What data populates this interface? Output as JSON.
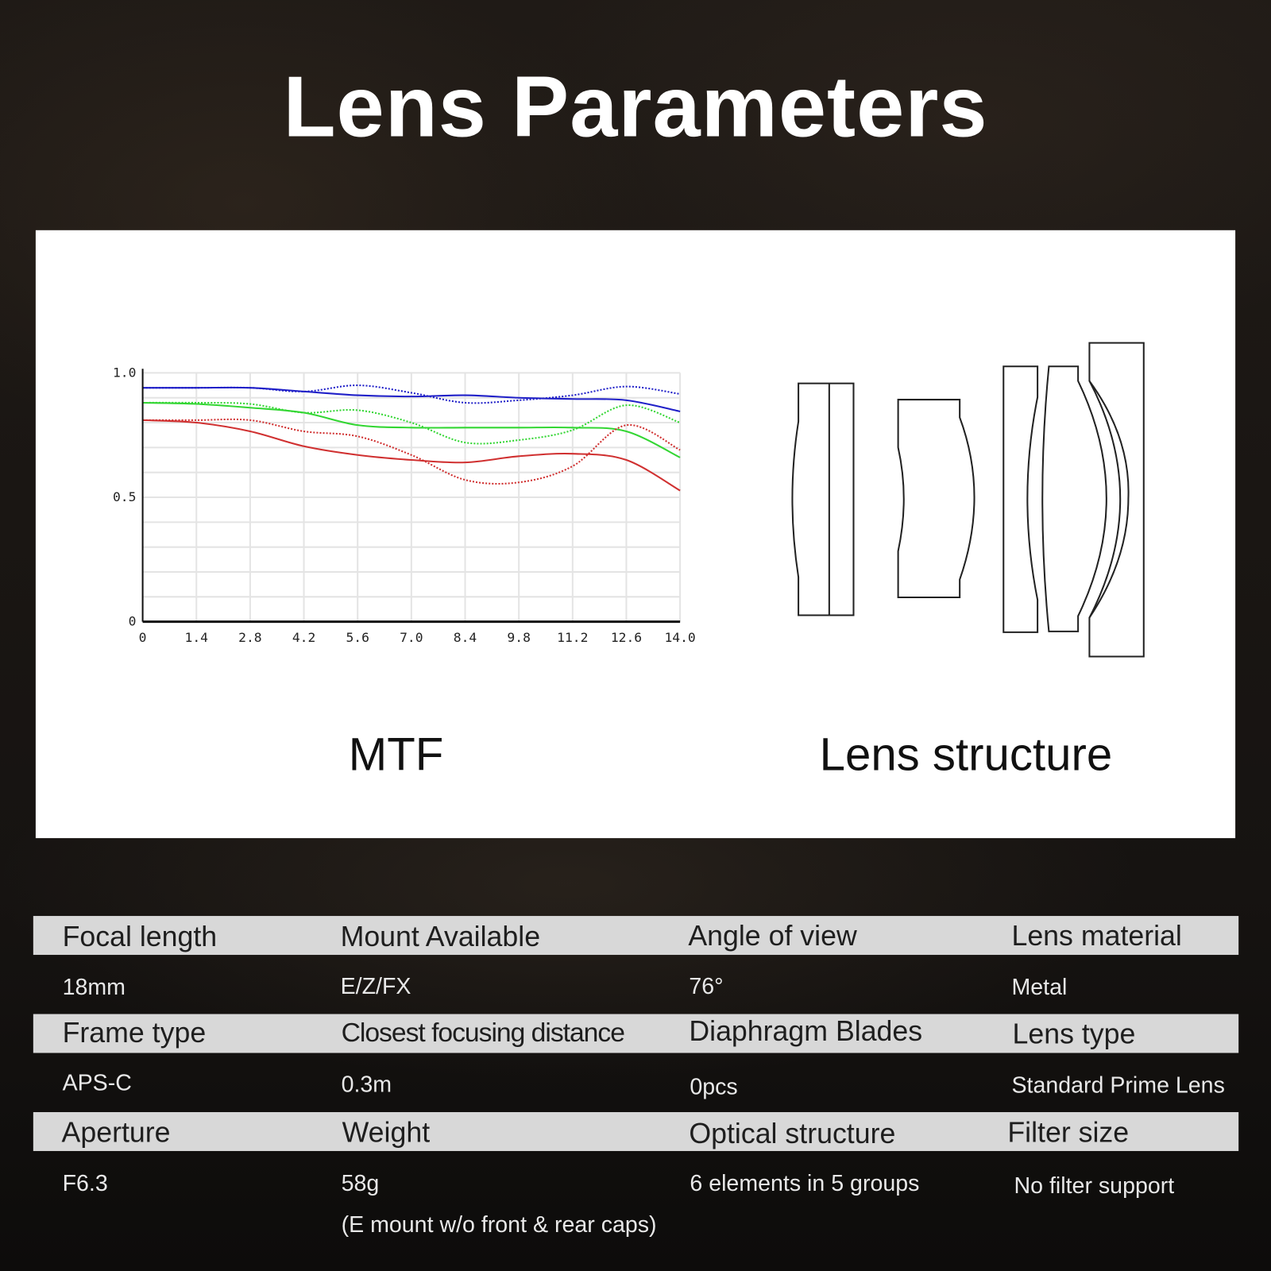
{
  "title": "Lens Parameters",
  "captions": {
    "mtf": "MTF",
    "structure": "Lens structure"
  },
  "specs": [
    {
      "label": "Focal length",
      "value": "18mm"
    },
    {
      "label": "Mount Available",
      "value": "E/Z/FX"
    },
    {
      "label": "Angle of view",
      "value": "76°"
    },
    {
      "label": "Lens material",
      "value": "Metal"
    },
    {
      "label": "Frame type",
      "value": "APS-C"
    },
    {
      "label": "Closest focusing distance",
      "value": "0.3m"
    },
    {
      "label": "Diaphragm Blades",
      "value": "0pcs"
    },
    {
      "label": "Lens type",
      "value": "Standard Prime Lens"
    },
    {
      "label": "Aperture",
      "value": "F6.3"
    },
    {
      "label": "Weight",
      "value": "58g",
      "note": "(E mount w/o front & rear caps)"
    },
    {
      "label": "Optical structure",
      "value": "6 elements in 5 groups"
    },
    {
      "label": "Filter size",
      "value": "No filter support"
    }
  ],
  "chart_data": {
    "type": "line",
    "title": "",
    "xlabel": "",
    "ylabel": "",
    "x": [
      0,
      1.4,
      2.8,
      4.2,
      5.6,
      7.0,
      8.4,
      9.8,
      11.2,
      12.6,
      14.0
    ],
    "xticks": [
      "0",
      "1.4",
      "2.8",
      "4.2",
      "5.6",
      "7.0",
      "8.4",
      "9.8",
      "11.2",
      "12.6",
      "14.0"
    ],
    "yticks": [
      "0",
      "0.5",
      "1.0"
    ],
    "xlim": [
      0,
      14
    ],
    "ylim": [
      0,
      1
    ],
    "grid": true,
    "series": [
      {
        "color": "#2020c8",
        "style": "solid",
        "values": [
          0.94,
          0.94,
          0.94,
          0.925,
          0.91,
          0.905,
          0.91,
          0.9,
          0.895,
          0.89,
          0.845
        ]
      },
      {
        "color": "#2020c8",
        "style": "dotted",
        "values": [
          0.94,
          0.94,
          0.94,
          0.925,
          0.95,
          0.92,
          0.88,
          0.89,
          0.91,
          0.945,
          0.915
        ]
      },
      {
        "color": "#33d633",
        "style": "solid",
        "values": [
          0.88,
          0.875,
          0.86,
          0.84,
          0.79,
          0.78,
          0.78,
          0.78,
          0.78,
          0.765,
          0.66
        ]
      },
      {
        "color": "#33d633",
        "style": "dotted",
        "values": [
          0.88,
          0.88,
          0.875,
          0.84,
          0.85,
          0.8,
          0.72,
          0.73,
          0.77,
          0.87,
          0.8
        ]
      },
      {
        "color": "#d03030",
        "style": "solid",
        "values": [
          0.81,
          0.8,
          0.765,
          0.705,
          0.67,
          0.65,
          0.64,
          0.665,
          0.675,
          0.65,
          0.527
        ]
      },
      {
        "color": "#d03030",
        "style": "dotted",
        "values": [
          0.81,
          0.81,
          0.81,
          0.765,
          0.745,
          0.67,
          0.57,
          0.56,
          0.625,
          0.79,
          0.69
        ]
      }
    ]
  }
}
